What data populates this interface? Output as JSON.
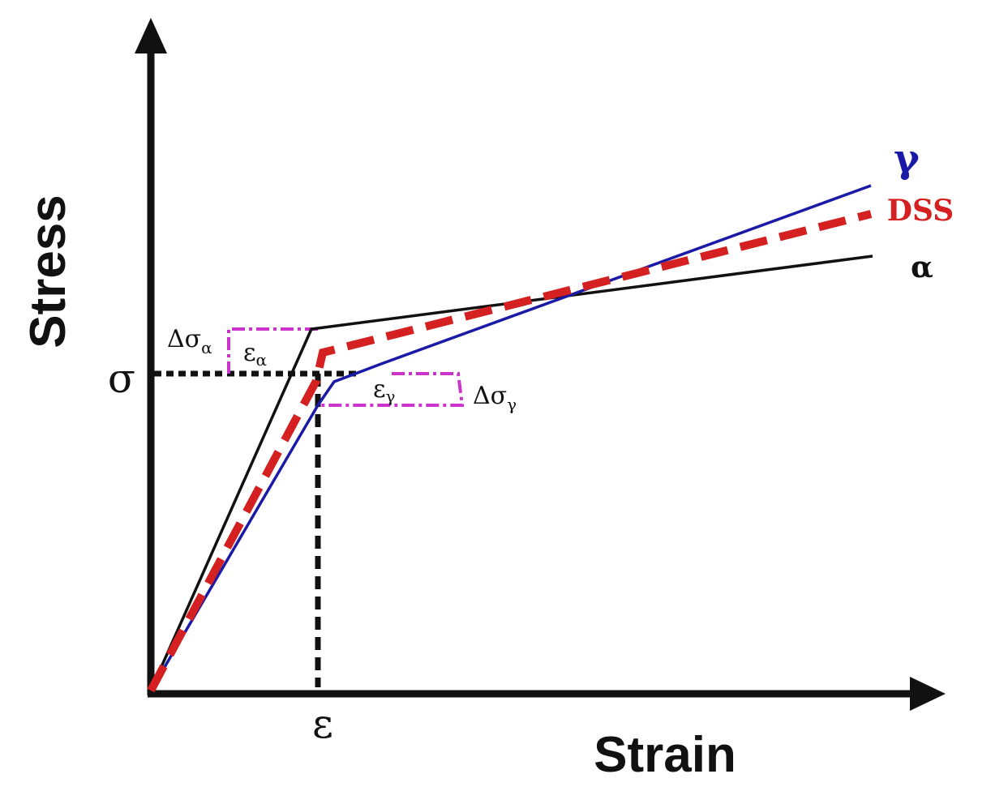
{
  "labels": {
    "y_axis": "Stress",
    "x_axis": "Strain",
    "sigma": "σ",
    "epsilon": "ε",
    "gamma_curve": "γ",
    "dss_curve": "DSS",
    "alpha_curve": "α",
    "delta_sigma_alpha_main": "Δσ",
    "delta_sigma_alpha_sub": "α",
    "epsilon_alpha_main": "ε",
    "epsilon_alpha_sub": "α",
    "epsilon_gamma_main": "ε",
    "epsilon_gamma_sub": "γ",
    "delta_sigma_gamma_main": "Δσ",
    "delta_sigma_gamma_sub": "γ"
  },
  "colors": {
    "axes": "#111111",
    "alpha_curve": "#111111",
    "gamma_curve": "#1a1aa6",
    "dss_curve": "#d42020",
    "increment_markers": "#cc33cc",
    "reference_lines": "#111111"
  }
}
